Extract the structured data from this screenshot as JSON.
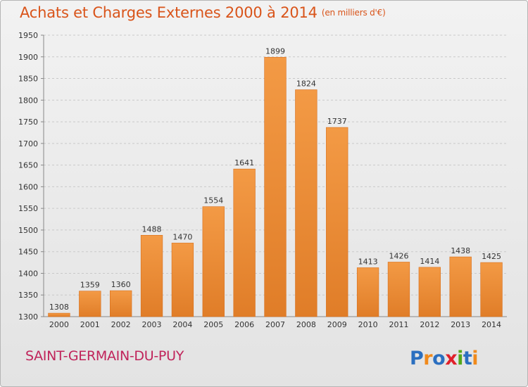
{
  "chart_data": {
    "type": "bar",
    "title": "Achats et Charges Externes 2000 à 2014",
    "subtitle": "(en milliers d'€)",
    "categories": [
      "2000",
      "2001",
      "2002",
      "2003",
      "2004",
      "2005",
      "2006",
      "2007",
      "2008",
      "2009",
      "2010",
      "2011",
      "2012",
      "2013",
      "2014"
    ],
    "values": [
      1308,
      1359,
      1360,
      1488,
      1470,
      1554,
      1641,
      1899,
      1824,
      1737,
      1413,
      1426,
      1414,
      1438,
      1425
    ],
    "ylim": [
      1300,
      1950
    ],
    "yticks": [
      1300,
      1350,
      1400,
      1450,
      1500,
      1550,
      1600,
      1650,
      1700,
      1750,
      1800,
      1850,
      1900,
      1950
    ],
    "grid": true,
    "bar_color": "#f0913c",
    "bar_color_dark": "#d86f1c"
  },
  "footer": {
    "commune": "SAINT-GERMAIN-DU-PUY",
    "logo_text": "Proxiti"
  }
}
